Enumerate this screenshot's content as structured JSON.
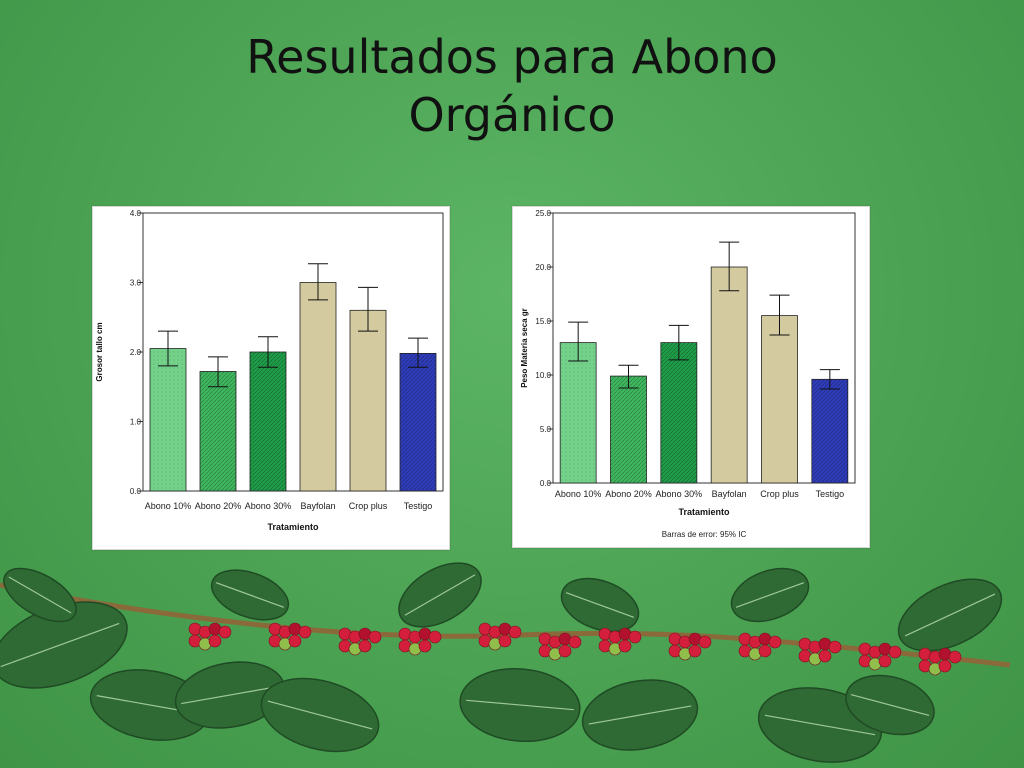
{
  "slide": {
    "title_line1": "Resultados para Abono",
    "title_line2": "Orgánico"
  },
  "colors": {
    "light_green": "#74d18a",
    "mid_green": "#3fb860",
    "dark_green": "#1f9e4a",
    "khaki": "#d3cb9f",
    "blue": "#2f3dbb",
    "background": "#4fa757"
  },
  "chart_data": [
    {
      "type": "bar",
      "categories": [
        "Abono 10%",
        "Abono 20%",
        "Abono 30%",
        "Bayfolan",
        "Crop plus",
        "Testigo"
      ],
      "values": [
        2.05,
        1.72,
        2.0,
        3.0,
        2.6,
        1.98
      ],
      "error_low": [
        1.8,
        1.5,
        1.78,
        2.75,
        2.3,
        1.78
      ],
      "error_high": [
        2.3,
        1.93,
        2.22,
        3.27,
        2.93,
        2.2
      ],
      "bar_colors": [
        "#74d18a",
        "#3fb860",
        "#1f9e4a",
        "#d3cb9f",
        "#d3cb9f",
        "#2f3dbb"
      ],
      "xlabel": "Tratamiento",
      "ylabel": "Grosor tallo cm",
      "ylim": [
        0,
        4
      ],
      "yticks": [
        "0.0",
        "1.0",
        "2.0",
        "3.0",
        "4.0"
      ],
      "ytick_values": [
        0,
        1,
        2,
        3,
        4
      ],
      "footnote": ""
    },
    {
      "type": "bar",
      "categories": [
        "Abono 10%",
        "Abono 20%",
        "Abono 30%",
        "Bayfolan",
        "Crop plus",
        "Testigo"
      ],
      "values": [
        13.0,
        9.9,
        13.0,
        20.0,
        15.5,
        9.6
      ],
      "error_low": [
        11.3,
        8.8,
        11.4,
        17.8,
        13.7,
        8.7
      ],
      "error_high": [
        14.9,
        10.9,
        14.6,
        22.3,
        17.4,
        10.5
      ],
      "bar_colors": [
        "#74d18a",
        "#3fb860",
        "#1f9e4a",
        "#d3cb9f",
        "#d3cb9f",
        "#2f3dbb"
      ],
      "xlabel": "Tratamiento",
      "ylabel": "Peso Materia seca gr",
      "ylim": [
        0,
        25
      ],
      "yticks": [
        "0.0",
        "5.0",
        "10.0",
        "15.0",
        "20.0",
        "25.0"
      ],
      "ytick_values": [
        0,
        5,
        10,
        15,
        20,
        25
      ],
      "footnote": "Barras de error: 95% IC"
    }
  ]
}
